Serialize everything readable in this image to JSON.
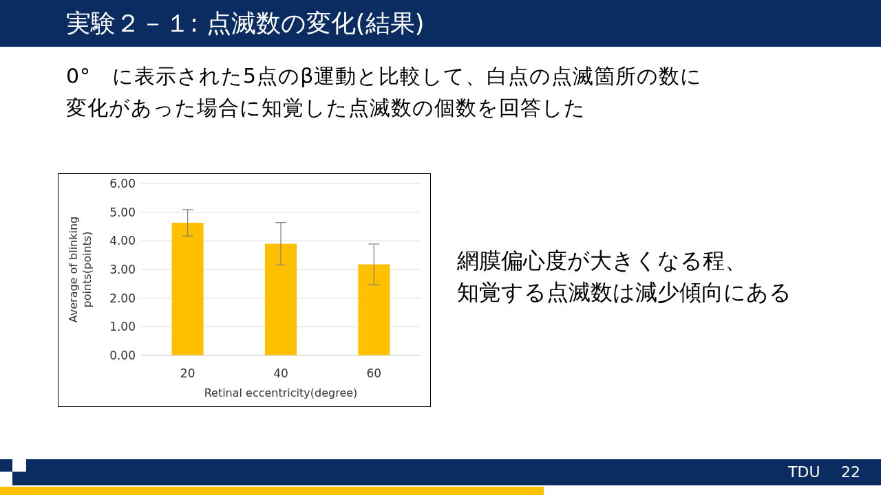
{
  "chart_data": {
    "type": "bar",
    "title": "実験２－１: 点滅数の変化(結果)",
    "subtitle": "0°　に表示された5点のβ運動と比較して、白点の点滅箇所の数に変化があった場合に知覚した点滅数の個数を回答した",
    "annotations": [
      "網膜偏心度が大きくなる程、知覚する点滅数は減少傾向にある",
      "TDU",
      "22"
    ],
    "xlabel": "Retinal eccentricity(degree)",
    "ylabel": "Average of blinking\npoints(points)",
    "categories": [
      "20",
      "40",
      "60"
    ],
    "values": [
      4.63,
      3.9,
      3.18
    ],
    "errors": [
      0.46,
      0.74,
      0.71
    ],
    "color": "#ffc000",
    "ylim": [
      0,
      6
    ],
    "yticks": [
      {
        "value": 0,
        "label": "0.00"
      },
      {
        "value": 1,
        "label": "1.00"
      },
      {
        "value": 2,
        "label": "2.00"
      },
      {
        "value": 3,
        "label": "3.00"
      },
      {
        "value": 4,
        "label": "4.00"
      },
      {
        "value": 5,
        "label": "5.00"
      },
      {
        "value": 6,
        "label": "6.00"
      }
    ],
    "grid": "y",
    "legend": false
  }
}
